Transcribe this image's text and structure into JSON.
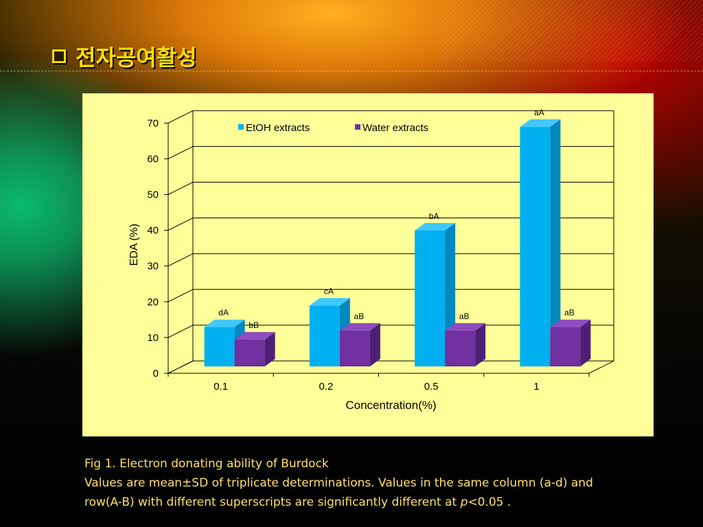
{
  "slide": {
    "title": "전자공여활성",
    "caption_line1": "Fig 1. Electron donating ability of Burdock",
    "caption_line2": "Values are mean±SD of triplicate determinations. Values in the same column (a-d) and",
    "caption_line3_prefix": "row(A-B) with different superscripts are significantly different at ",
    "caption_line3_p": "p",
    "caption_line3_suffix": "<0.05 ."
  },
  "colors": {
    "title": "#ffe000",
    "panel_bg": "#ffff99",
    "etoh_front": "#00b0f0",
    "etoh_side": "#0088c0",
    "etoh_top": "#40c8ff",
    "water_front": "#7030a0",
    "water_side": "#4f1f78",
    "water_top": "#8e4cc0"
  },
  "chart_data": {
    "type": "bar",
    "categories": [
      "0.1",
      "0.2",
      "0.5",
      "1"
    ],
    "series": [
      {
        "name": "EtOH extracts",
        "values": [
          11,
          17,
          38,
          67
        ],
        "labels": [
          "dA",
          "cA",
          "bA",
          "aA"
        ]
      },
      {
        "name": "Water extracts",
        "values": [
          7.5,
          10,
          10,
          11
        ],
        "labels": [
          "bB",
          "aB",
          "aB",
          "aB"
        ]
      }
    ],
    "xlabel": "Concentration(%)",
    "ylabel": "EDA (%)",
    "ylim": [
      0,
      70
    ],
    "yticks": [
      "0",
      "10",
      "20",
      "30",
      "40",
      "50",
      "60",
      "70"
    ],
    "legend_position": "top-center",
    "grid": true
  }
}
